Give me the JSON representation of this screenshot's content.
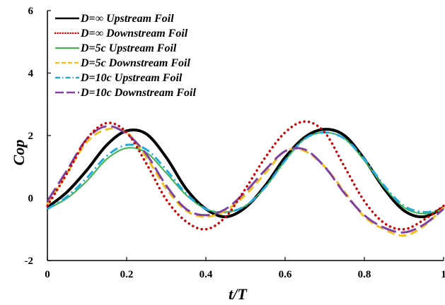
{
  "chart_data": {
    "type": "line",
    "title": "",
    "xlabel": "t/T",
    "ylabel": "Cop",
    "xlim": [
      0,
      1
    ],
    "ylim": [
      -2,
      6
    ],
    "xticks": [
      0,
      0.2,
      0.4,
      0.6,
      0.8,
      1
    ],
    "xtick_labels": [
      "0",
      "0.2",
      "0.4",
      "0.6",
      "0.8",
      "1"
    ],
    "yticks": [
      -2,
      0,
      2,
      4,
      6
    ],
    "ytick_labels": [
      "-2",
      "0",
      "2",
      "4",
      "6"
    ],
    "grid": false,
    "legend_position": "top-left",
    "x": [
      0,
      0.05,
      0.1,
      0.15,
      0.2,
      0.25,
      0.3,
      0.35,
      0.4,
      0.45,
      0.5,
      0.55,
      0.6,
      0.65,
      0.7,
      0.75,
      0.8,
      0.85,
      0.9,
      0.95,
      1
    ],
    "series": [
      {
        "name": "D=∞ Upstream Foil",
        "color": "#000000",
        "dash": "solid",
        "width": 4,
        "values": [
          -0.3,
          0.2,
          0.9,
          1.7,
          2.15,
          2.05,
          1.3,
          0.3,
          -0.35,
          -0.6,
          -0.3,
          0.4,
          1.3,
          1.95,
          2.2,
          2.0,
          1.25,
          0.3,
          -0.4,
          -0.6,
          -0.3
        ]
      },
      {
        "name": "D=∞ Downstream Foil",
        "color": "#cc0000",
        "dash": "dotted",
        "width": 3.5,
        "values": [
          -0.25,
          0.8,
          1.9,
          2.4,
          2.1,
          1.1,
          -0.05,
          -0.75,
          -1.0,
          -0.6,
          0.3,
          1.3,
          2.1,
          2.45,
          2.1,
          1.0,
          -0.1,
          -0.8,
          -1.0,
          -0.7,
          -0.25
        ]
      },
      {
        "name": "D=5c Upstream Foil",
        "color": "#3cb44b",
        "dash": "solid",
        "width": 2,
        "values": [
          -0.35,
          0.0,
          0.55,
          1.25,
          1.6,
          1.45,
          0.8,
          0.1,
          -0.35,
          -0.45,
          -0.25,
          0.35,
          1.2,
          1.9,
          2.1,
          1.9,
          1.2,
          0.35,
          -0.3,
          -0.5,
          -0.35
        ]
      },
      {
        "name": "D=5c Downstream Foil",
        "color": "#f0c020",
        "dash": "dashed",
        "width": 3,
        "values": [
          -0.2,
          0.8,
          1.8,
          2.2,
          2.1,
          1.3,
          0.3,
          -0.4,
          -0.6,
          -0.4,
          0.1,
          0.8,
          1.5,
          1.5,
          1.0,
          0.2,
          -0.6,
          -1.0,
          -1.2,
          -0.9,
          -0.3
        ]
      },
      {
        "name": "D=10c Upstream Foil",
        "color": "#22aadd",
        "dash": "dashdot",
        "width": 3,
        "values": [
          -0.35,
          0.05,
          0.65,
          1.35,
          1.7,
          1.55,
          0.9,
          0.15,
          -0.35,
          -0.45,
          -0.25,
          0.35,
          1.2,
          1.9,
          2.1,
          1.9,
          1.25,
          0.4,
          -0.25,
          -0.45,
          -0.35
        ]
      },
      {
        "name": "D=10c Downstream Foil",
        "color": "#8040a0",
        "dash": "longdash",
        "width": 3,
        "values": [
          -0.1,
          0.9,
          1.9,
          2.3,
          2.05,
          1.4,
          0.4,
          -0.35,
          -0.55,
          -0.35,
          0.2,
          0.9,
          1.5,
          1.55,
          1.0,
          0.15,
          -0.55,
          -0.95,
          -1.1,
          -0.85,
          -0.35
        ]
      }
    ]
  }
}
